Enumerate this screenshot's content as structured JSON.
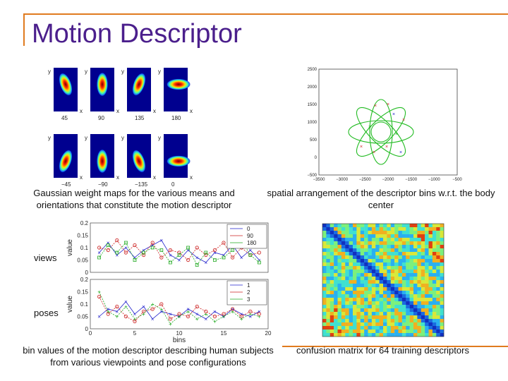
{
  "title": "Motion Descriptor",
  "captions": {
    "weight_maps": "Gaussian weight maps for the various means and orientations that constitute the motion descriptor",
    "spatial": "spatial arrangement of the descriptor bins w.r.t. the body center",
    "bin_values": "bin values of the motion descriptor describing human subjects from various viewpoints and pose configurations",
    "confusion": "confusion matrix for 64 training descriptors"
  },
  "row_labels": {
    "views": "views",
    "poses": "poses"
  },
  "weight_maps": {
    "axis_x": "x",
    "axis_y": "y",
    "panels": [
      {
        "label": "45"
      },
      {
        "label": "90"
      },
      {
        "label": "135"
      },
      {
        "label": "180"
      },
      {
        "label": "−45"
      },
      {
        "label": "−90"
      },
      {
        "label": "−135"
      },
      {
        "label": "0"
      }
    ]
  },
  "spatial_plot": {
    "x_ticks": [
      "−3500",
      "−3000",
      "−2500",
      "−2000",
      "−1500",
      "−1000",
      "−500"
    ],
    "y_ticks": [
      "2500",
      "2000",
      "1500",
      "1000",
      "500",
      "0",
      "−500"
    ],
    "color": "#22bb22"
  },
  "chart_data": [
    {
      "type": "line",
      "ylabel": "value",
      "xlim": [
        0,
        20
      ],
      "ylim": [
        0,
        0.2
      ],
      "y_ticks": [
        "0.2",
        "0.15",
        "0.1",
        "0.05",
        "0"
      ],
      "legend_position": "top-right",
      "x": [
        1,
        2,
        3,
        4,
        5,
        6,
        7,
        8,
        9,
        10,
        11,
        12,
        13,
        14,
        15,
        16,
        17,
        18,
        19
      ],
      "series": [
        {
          "name": "0",
          "color": "#2222cc",
          "marker": "x",
          "values": [
            0.08,
            0.12,
            0.07,
            0.1,
            0.06,
            0.09,
            0.11,
            0.13,
            0.07,
            0.05,
            0.09,
            0.06,
            0.04,
            0.08,
            0.07,
            0.11,
            0.06,
            0.09,
            0.05
          ]
        },
        {
          "name": "90",
          "color": "#cc2222",
          "marker": "o",
          "values": [
            0.1,
            0.09,
            0.13,
            0.08,
            0.11,
            0.07,
            0.12,
            0.06,
            0.09,
            0.08,
            0.05,
            0.1,
            0.07,
            0.09,
            0.12,
            0.06,
            0.1,
            0.07,
            0.08
          ]
        },
        {
          "name": "180",
          "color": "#22aa22",
          "marker": "s",
          "values": [
            0.06,
            0.11,
            0.08,
            0.12,
            0.05,
            0.08,
            0.1,
            0.09,
            0.04,
            0.07,
            0.1,
            0.03,
            0.08,
            0.05,
            0.06,
            0.09,
            0.13,
            0.07,
            0.04
          ]
        }
      ]
    },
    {
      "type": "line",
      "xlabel": "bins",
      "ylabel": "value",
      "xlim": [
        0,
        20
      ],
      "ylim": [
        0,
        0.2
      ],
      "x_ticks": [
        "0",
        "5",
        "10",
        "15",
        "20"
      ],
      "y_ticks": [
        "0.2",
        "0.15",
        "0.1",
        "0.05",
        "0"
      ],
      "legend_position": "top-right",
      "x": [
        1,
        2,
        3,
        4,
        5,
        6,
        7,
        8,
        9,
        10,
        11,
        12,
        13,
        14,
        15,
        16,
        17,
        18,
        19
      ],
      "series": [
        {
          "name": "1",
          "color": "#2222cc",
          "marker": "x",
          "values": [
            0.05,
            0.08,
            0.07,
            0.11,
            0.06,
            0.09,
            0.04,
            0.07,
            0.06,
            0.05,
            0.08,
            0.06,
            0.04,
            0.07,
            0.05,
            0.08,
            0.06,
            0.05,
            0.07
          ]
        },
        {
          "name": "2",
          "color": "#cc2222",
          "marker": "o",
          "values": [
            0.13,
            0.06,
            0.09,
            0.05,
            0.03,
            0.07,
            0.08,
            0.1,
            0.04,
            0.06,
            0.05,
            0.09,
            0.07,
            0.05,
            0.06,
            0.08,
            0.05,
            0.07,
            0.06
          ]
        },
        {
          "name": "3",
          "color": "#22aa22",
          "marker": "+",
          "values": [
            0.15,
            0.07,
            0.05,
            0.09,
            0.04,
            0.06,
            0.1,
            0.08,
            0.02,
            0.05,
            0.07,
            0.04,
            0.06,
            0.03,
            0.05,
            0.07,
            0.04,
            0.06,
            0.05
          ]
        }
      ]
    }
  ]
}
